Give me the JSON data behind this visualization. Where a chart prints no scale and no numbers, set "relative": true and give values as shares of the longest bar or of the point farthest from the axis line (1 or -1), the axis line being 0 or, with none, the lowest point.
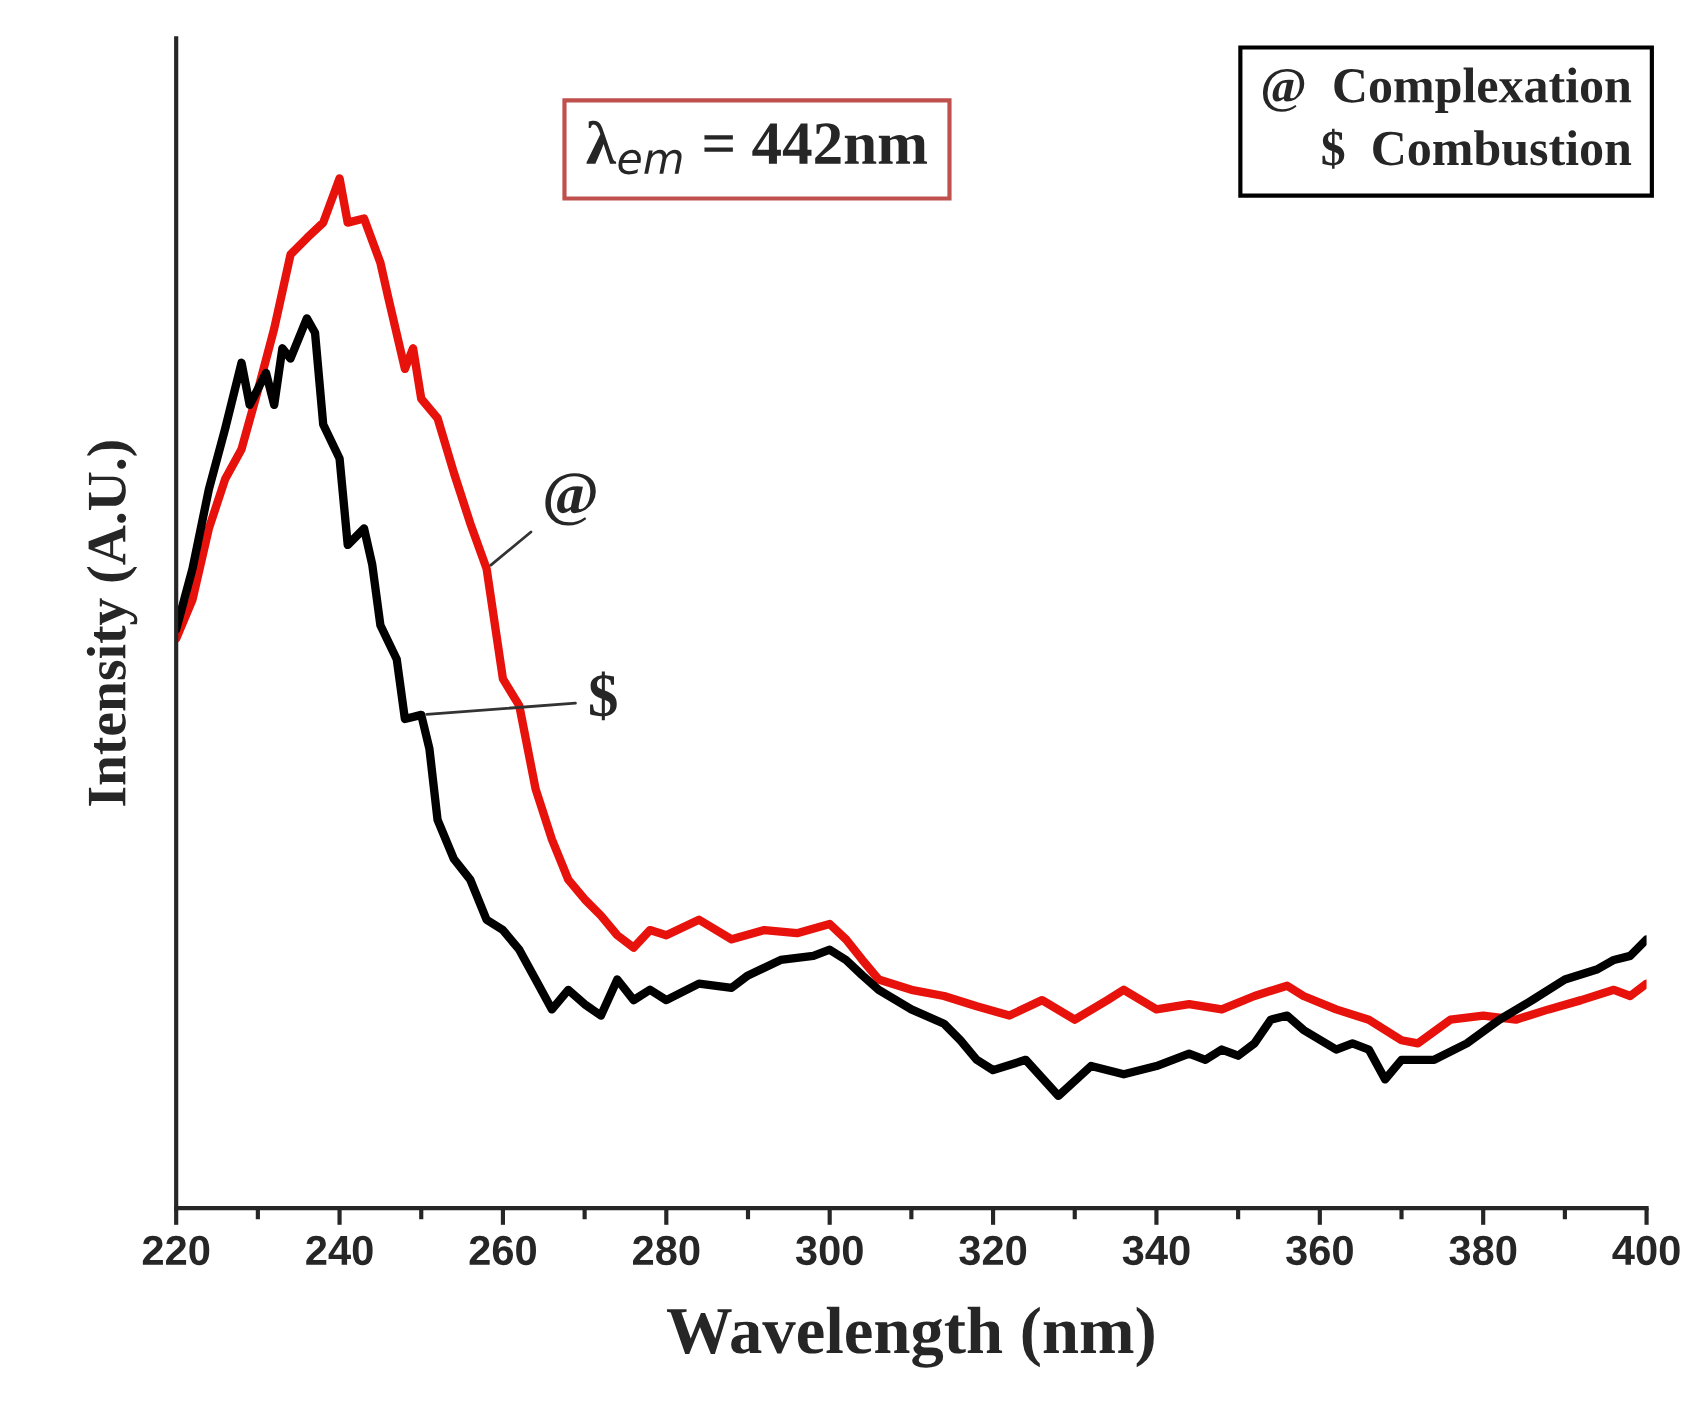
{
  "chart_data": {
    "type": "line",
    "relative": true,
    "xlabel": "Wavelength (nm)",
    "ylabel": "Intensity (A.U.)",
    "xlim": [
      220,
      400
    ],
    "xticks": [
      220,
      {
        "value": 230,
        "label": null
      },
      240,
      {
        "value": 250,
        "label": null
      },
      260,
      {
        "value": 270,
        "label": null
      },
      280,
      {
        "value": 290,
        "label": null
      },
      300,
      {
        "value": 310,
        "label": null
      },
      320,
      {
        "value": 330,
        "label": null
      },
      340,
      {
        "value": 350,
        "label": null
      },
      360,
      {
        "value": 370,
        "label": null
      },
      380,
      {
        "value": 390,
        "label": null
      },
      400
    ],
    "grid": false,
    "legend": false,
    "marker": "none",
    "line_style": "solid",
    "series": [
      {
        "color": "#e8120c",
        "x": [
          220,
          222,
          224,
          226,
          228,
          230,
          232,
          234,
          236,
          238,
          240,
          241,
          243,
          245,
          246,
          248,
          249,
          250,
          252,
          254,
          256,
          258,
          260,
          262,
          264,
          266,
          268,
          270,
          272,
          274,
          276,
          278,
          280,
          284,
          288,
          292,
          296,
          300,
          302,
          304,
          306,
          310,
          314,
          318,
          322,
          326,
          330,
          334,
          336,
          340,
          344,
          348,
          352,
          356,
          358,
          362,
          366,
          370,
          372,
          376,
          380,
          384,
          388,
          392,
          396,
          398,
          400
        ],
        "values": [
          0.553,
          0.591,
          0.66,
          0.708,
          0.737,
          0.794,
          0.854,
          0.926,
          0.942,
          0.957,
          1.0,
          0.957,
          0.961,
          0.918,
          0.883,
          0.815,
          0.835,
          0.786,
          0.767,
          0.714,
          0.665,
          0.621,
          0.514,
          0.488,
          0.407,
          0.358,
          0.319,
          0.3,
          0.284,
          0.265,
          0.253,
          0.27,
          0.265,
          0.28,
          0.261,
          0.27,
          0.267,
          0.276,
          0.261,
          0.241,
          0.222,
          0.212,
          0.206,
          0.196,
          0.187,
          0.202,
          0.183,
          0.202,
          0.212,
          0.193,
          0.198,
          0.193,
          0.206,
          0.216,
          0.206,
          0.193,
          0.183,
          0.163,
          0.16,
          0.183,
          0.187,
          0.183,
          0.193,
          0.202,
          0.212,
          0.206,
          0.218
        ]
      },
      {
        "color": "#000000",
        "x": [
          220,
          222,
          224,
          226,
          228,
          229,
          231,
          232,
          233,
          234,
          236,
          237,
          238,
          240,
          241,
          243,
          244,
          245,
          247,
          248,
          250,
          251,
          252,
          254,
          256,
          258,
          260,
          262,
          264,
          266,
          268,
          270,
          272,
          274,
          276,
          278,
          280,
          284,
          288,
          290,
          294,
          298,
          300,
          302,
          304,
          306,
          310,
          314,
          316,
          318,
          320,
          324,
          328,
          332,
          336,
          340,
          344,
          346,
          348,
          350,
          352,
          354,
          356,
          358,
          362,
          364,
          366,
          368,
          370,
          374,
          378,
          382,
          386,
          390,
          394,
          396,
          398,
          400
        ],
        "values": [
          0.562,
          0.621,
          0.698,
          0.757,
          0.821,
          0.78,
          0.811,
          0.78,
          0.835,
          0.825,
          0.864,
          0.85,
          0.761,
          0.728,
          0.644,
          0.66,
          0.625,
          0.566,
          0.533,
          0.475,
          0.479,
          0.446,
          0.377,
          0.339,
          0.319,
          0.28,
          0.27,
          0.251,
          0.222,
          0.193,
          0.212,
          0.198,
          0.187,
          0.222,
          0.202,
          0.212,
          0.202,
          0.218,
          0.214,
          0.226,
          0.241,
          0.245,
          0.251,
          0.241,
          0.226,
          0.212,
          0.193,
          0.179,
          0.163,
          0.144,
          0.134,
          0.144,
          0.109,
          0.138,
          0.13,
          0.138,
          0.15,
          0.144,
          0.154,
          0.148,
          0.16,
          0.183,
          0.187,
          0.173,
          0.154,
          0.16,
          0.154,
          0.125,
          0.144,
          0.144,
          0.16,
          0.183,
          0.202,
          0.222,
          0.232,
          0.241,
          0.245,
          0.261
        ]
      }
    ],
    "annotations": [
      {
        "text": "@",
        "x": 258,
        "y": 0.621
      },
      {
        "text": "$",
        "x": 250,
        "y": 0.479
      },
      "λ$_{em}$ = 442nm",
      "@  Complexation\n$  Combustion"
    ]
  }
}
